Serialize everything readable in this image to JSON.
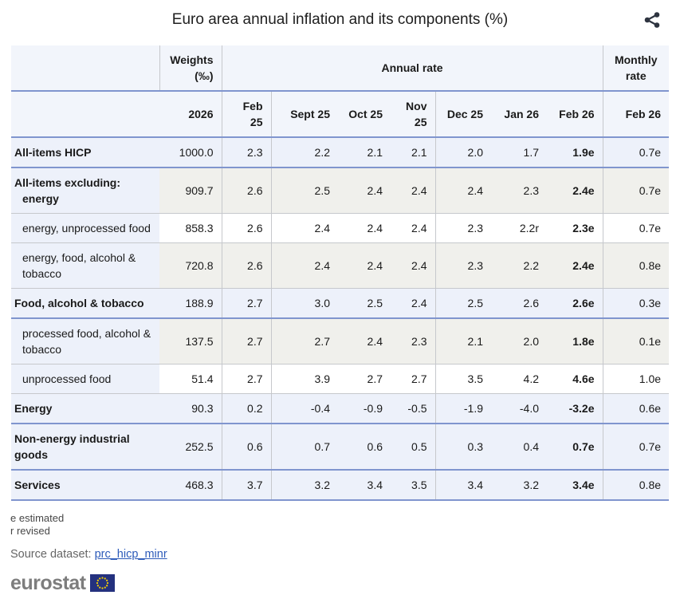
{
  "title": "Euro area annual inflation and its components (%)",
  "share": {
    "tooltip": "share"
  },
  "table": {
    "headers": {
      "weights": "Weights\n(‰)",
      "annual_rate": "Annual rate",
      "monthly_rate": "Monthly\nrate",
      "year": "2026",
      "months": [
        "Feb 25",
        "Sept 25",
        "Oct 25",
        "Nov 25",
        "Dec 25",
        "Jan 26",
        "Feb 26"
      ],
      "monthly_month": "Feb 26"
    },
    "rows": [
      {
        "label": "All-items HICP",
        "variant": "main",
        "bg": "blue",
        "divider": "blue",
        "weight": "1000.0",
        "values": [
          "2.3",
          "2.2",
          "2.1",
          "2.1",
          "2.0",
          "1.7",
          "1.9e"
        ],
        "monthly": "0.7e"
      },
      {
        "label": "All-items excluding:\nenergy",
        "variant": "hang",
        "bg": "grey",
        "divider": "grey",
        "weight": "909.7",
        "values": [
          "2.6",
          "2.5",
          "2.4",
          "2.4",
          "2.4",
          "2.3",
          "2.4e"
        ],
        "monthly": "0.7e"
      },
      {
        "label": "energy, unprocessed food",
        "variant": "sub",
        "bg": "white",
        "divider": "grey",
        "weight": "858.3",
        "values": [
          "2.6",
          "2.4",
          "2.4",
          "2.4",
          "2.3",
          "2.2r",
          "2.3e"
        ],
        "monthly": "0.7e"
      },
      {
        "label": "energy, food, alcohol & tobacco",
        "variant": "sub",
        "bg": "grey",
        "divider": "grey",
        "weight": "720.8",
        "values": [
          "2.6",
          "2.4",
          "2.4",
          "2.4",
          "2.3",
          "2.2",
          "2.4e"
        ],
        "monthly": "0.8e"
      },
      {
        "label": "Food, alcohol & tobacco",
        "variant": "main",
        "bg": "blue",
        "divider": "blue",
        "weight": "188.9",
        "values": [
          "2.7",
          "3.0",
          "2.5",
          "2.4",
          "2.5",
          "2.6",
          "2.6e"
        ],
        "monthly": "0.3e"
      },
      {
        "label": "processed food, alcohol & tobacco",
        "variant": "sub",
        "bg": "grey",
        "divider": "grey",
        "weight": "137.5",
        "values": [
          "2.7",
          "2.7",
          "2.4",
          "2.3",
          "2.1",
          "2.0",
          "1.8e"
        ],
        "monthly": "0.1e"
      },
      {
        "label": "unprocessed food",
        "variant": "sub",
        "bg": "white",
        "divider": "grey",
        "weight": "51.4",
        "values": [
          "2.7",
          "3.9",
          "2.7",
          "2.7",
          "3.5",
          "4.2",
          "4.6e"
        ],
        "monthly": "1.0e"
      },
      {
        "label": "Energy",
        "variant": "main",
        "bg": "blue",
        "divider": "blue",
        "weight": "90.3",
        "values": [
          "0.2",
          "-0.4",
          "-0.9",
          "-0.5",
          "-1.9",
          "-4.0",
          "-3.2e"
        ],
        "monthly": "0.6e"
      },
      {
        "label": "Non-energy industrial goods",
        "variant": "main",
        "bg": "blue",
        "divider": "blue",
        "weight": "252.5",
        "values": [
          "0.6",
          "0.7",
          "0.6",
          "0.5",
          "0.3",
          "0.4",
          "0.7e"
        ],
        "monthly": "0.7e"
      },
      {
        "label": "Services",
        "variant": "main",
        "bg": "blue",
        "divider": "blue",
        "weight": "468.3",
        "values": [
          "3.7",
          "3.2",
          "3.4",
          "3.5",
          "3.4",
          "3.2",
          "3.4e"
        ],
        "monthly": "0.8e"
      }
    ]
  },
  "footnotes": {
    "estimated": "e estimated",
    "revised": "r revised"
  },
  "source": {
    "label": "Source dataset: ",
    "dataset": "prc_hicp_minr"
  },
  "logo": {
    "text": "eurostat"
  },
  "colors": {
    "section_line": "#8095ce",
    "grid_line": "#c6c8cc",
    "row_blue": "#edf1fa",
    "row_grey": "#f0f0ec",
    "row_white": "#ffffff",
    "header_bg": "#f2f5fb",
    "link": "#2d5bb9",
    "flag_blue": "#24317e",
    "star_yellow": "#f8d000"
  }
}
